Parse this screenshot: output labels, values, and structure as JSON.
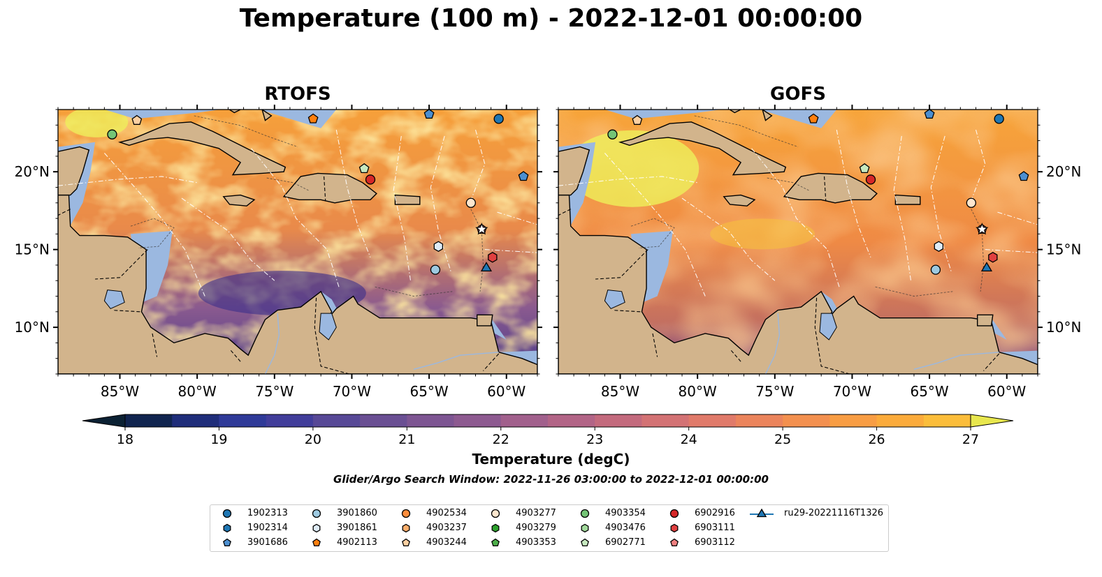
{
  "title": "Temperature (100 m) - 2022-12-01 00:00:00",
  "panels": [
    {
      "title": "RTOFS"
    },
    {
      "title": "GOFS"
    }
  ],
  "x_ticks": [
    "85°W",
    "80°W",
    "75°W",
    "70°W",
    "65°W",
    "60°W"
  ],
  "y_ticks": [
    "10°N",
    "15°N",
    "20°N"
  ],
  "colorbar": {
    "label": "Temperature (degC)",
    "ticks": [
      "18",
      "19",
      "20",
      "21",
      "22",
      "23",
      "24",
      "25",
      "26",
      "27"
    ],
    "min": 18,
    "max": 27,
    "step": 0.5,
    "extend": "both"
  },
  "search_window": "Glider/Argo Search Window: 2022-11-26 03:00:00 to 2022-12-01 00:00:00",
  "colors": {
    "land": "#d2b48c",
    "shelf": "#9bb8e0",
    "deep": "#0a2533"
  },
  "legend": [
    {
      "label": "1902313",
      "marker": "circle",
      "color": "#1f77b4"
    },
    {
      "label": "1902314",
      "marker": "hexagon",
      "color": "#1f77b4"
    },
    {
      "label": "3901686",
      "marker": "pentagon",
      "color": "#4c8fd0"
    },
    {
      "label": "3901860",
      "marker": "circle",
      "color": "#9ecae1"
    },
    {
      "label": "3901861",
      "marker": "hexagon",
      "color": "#deebf7"
    },
    {
      "label": "4902113",
      "marker": "pentagon",
      "color": "#ff7f0e"
    },
    {
      "label": "4902534",
      "marker": "circle",
      "color": "#fd8d3c"
    },
    {
      "label": "4903237",
      "marker": "hexagon",
      "color": "#fdae6b"
    },
    {
      "label": "4903244",
      "marker": "pentagon",
      "color": "#fdd0a2"
    },
    {
      "label": "4903277",
      "marker": "circle",
      "color": "#fee6ce"
    },
    {
      "label": "4903279",
      "marker": "hexagon",
      "color": "#2ca02c"
    },
    {
      "label": "4903353",
      "marker": "pentagon",
      "color": "#4daf4a"
    },
    {
      "label": "4903354",
      "marker": "circle",
      "color": "#74c476"
    },
    {
      "label": "4903476",
      "marker": "hexagon",
      "color": "#a1d99b"
    },
    {
      "label": "6902771",
      "marker": "pentagon",
      "color": "#c7e9c0"
    },
    {
      "label": "6902916",
      "marker": "circle",
      "color": "#d62728"
    },
    {
      "label": "6903111",
      "marker": "hexagon",
      "color": "#e04040"
    },
    {
      "label": "6903112",
      "marker": "pentagon",
      "color": "#f08080"
    },
    {
      "label": "ru29-20221116T1326",
      "marker": "triangle-line",
      "color": "#1f77b4"
    }
  ],
  "chart_data": {
    "type": "heatmap",
    "variable": "Temperature (100 m)",
    "units": "degC",
    "lon_range": [
      -89,
      -58
    ],
    "lat_range": [
      7,
      24
    ],
    "vmin": 18,
    "vmax": 27,
    "panels": [
      "RTOFS",
      "GOFS"
    ],
    "observations": [
      {
        "id": "4903354",
        "lon": -85.5,
        "lat": 22.4
      },
      {
        "id": "4903244",
        "lon": -83.9,
        "lat": 23.3
      },
      {
        "id": "4902113",
        "lon": -72.5,
        "lat": 23.4
      },
      {
        "id": "3901686",
        "lon": -65.0,
        "lat": 23.7
      },
      {
        "id": "1902313",
        "lon": -60.5,
        "lat": 23.4
      },
      {
        "id": "3901686",
        "lon": -58.9,
        "lat": 19.7
      },
      {
        "id": "6902771",
        "lon": -69.2,
        "lat": 20.2
      },
      {
        "id": "6902916",
        "lon": -68.8,
        "lat": 19.5
      },
      {
        "id": "4903277",
        "lon": -62.3,
        "lat": 18.0
      },
      {
        "id": "6903112",
        "lon": -61.6,
        "lat": 16.3
      },
      {
        "id": "3901861",
        "lon": -64.4,
        "lat": 15.2
      },
      {
        "id": "6903111",
        "lon": -60.9,
        "lat": 14.5
      },
      {
        "id": "3901860",
        "lon": -64.6,
        "lat": 13.7
      },
      {
        "id": "ru29-20221116T1326",
        "lon": -61.3,
        "lat": 13.8
      }
    ]
  }
}
